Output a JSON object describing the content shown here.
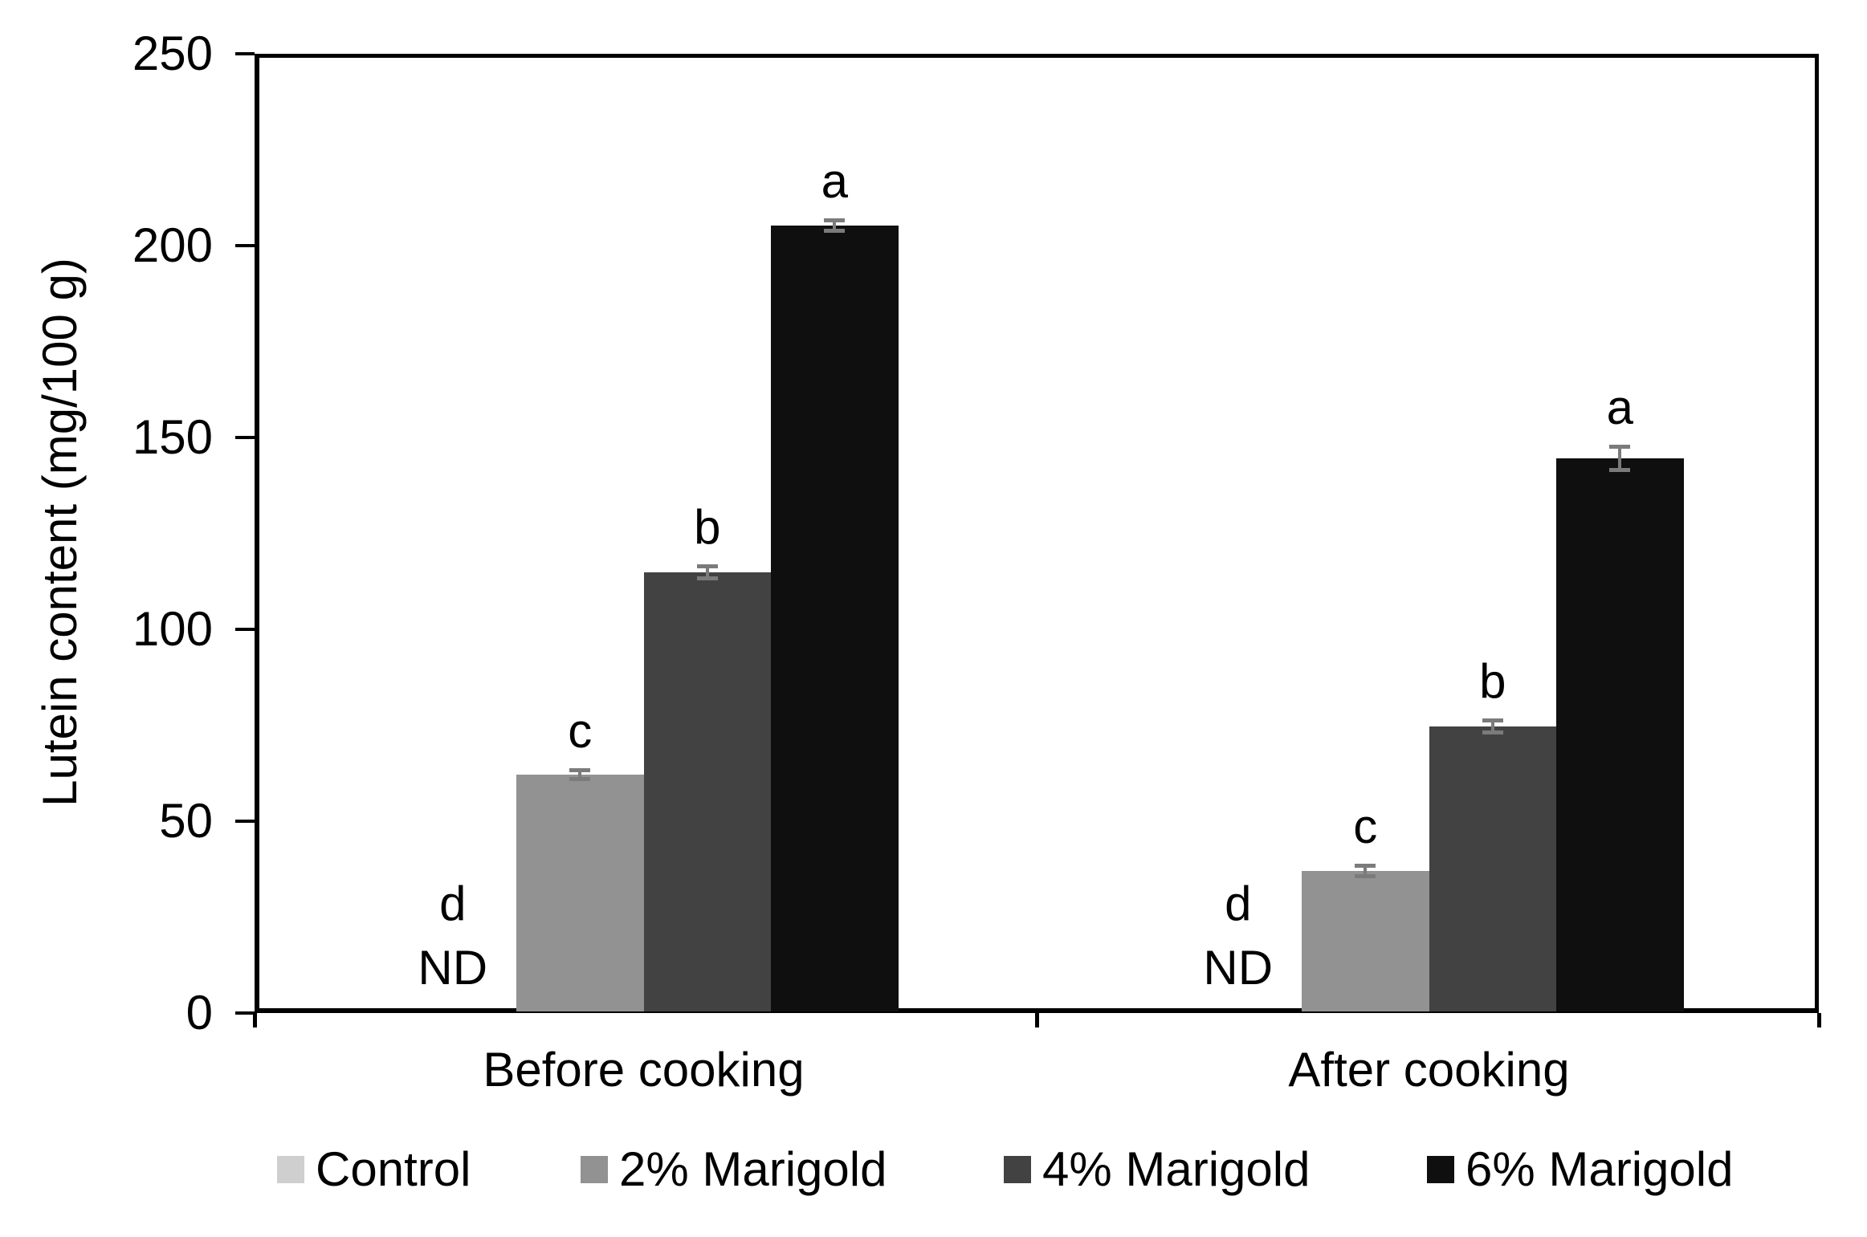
{
  "chart_data": {
    "type": "bar",
    "title": "",
    "xlabel": "",
    "ylabel": "Lutein content (mg/100 g)",
    "ylim": [
      0,
      250
    ],
    "yticks": [
      0,
      50,
      100,
      150,
      200,
      250
    ],
    "grid": false,
    "legend_position": "bottom",
    "categories": [
      "Before cooking",
      "After cooking"
    ],
    "nd_label": "ND",
    "series": [
      {
        "name": "Control",
        "color": "#cfcfcf",
        "values": [
          null,
          null
        ],
        "errors": [
          null,
          null
        ],
        "letters": [
          "d",
          "d"
        ],
        "not_detected": [
          true,
          true
        ]
      },
      {
        "name": "2% Marigold",
        "color": "#929292",
        "values": [
          61.7,
          36.6
        ],
        "errors": [
          1.0,
          1.2
        ],
        "letters": [
          "c",
          "c"
        ],
        "not_detected": [
          false,
          false
        ]
      },
      {
        "name": "4% Marigold",
        "color": "#424242",
        "values": [
          114.4,
          74.3
        ],
        "errors": [
          1.5,
          1.5
        ],
        "letters": [
          "b",
          "b"
        ],
        "not_detected": [
          false,
          false
        ]
      },
      {
        "name": "6% Marigold",
        "color": "#0f0f0f",
        "values": [
          204.8,
          144.1
        ],
        "errors": [
          1.3,
          2.9
        ],
        "letters": [
          "a",
          "a"
        ],
        "not_detected": [
          false,
          false
        ]
      }
    ],
    "error_bar_color": "#7b7b7b",
    "axis_color": "#000000"
  }
}
